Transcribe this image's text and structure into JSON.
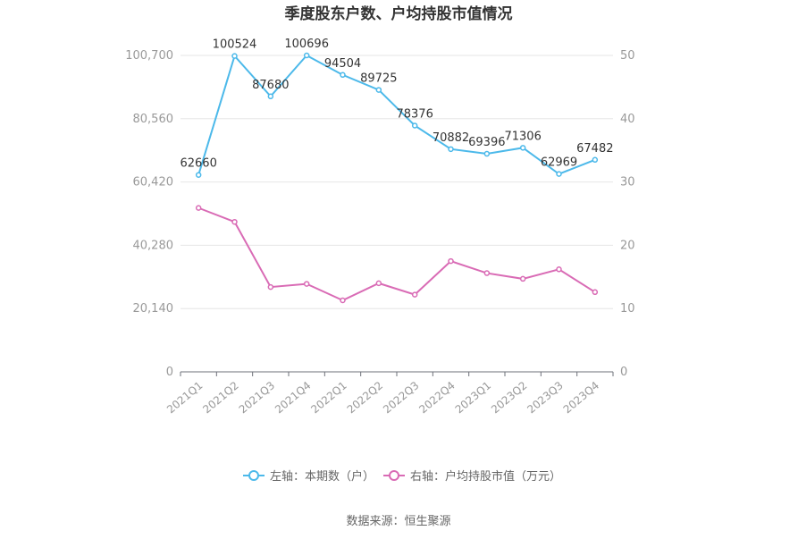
{
  "chart_data": {
    "type": "line",
    "title": "季度股东户数、户均持股市值情况",
    "categories": [
      "2021Q1",
      "2021Q2",
      "2021Q3",
      "2021Q4",
      "2022Q1",
      "2022Q2",
      "2022Q3",
      "2022Q4",
      "2023Q1",
      "2023Q2",
      "2023Q3",
      "2023Q4"
    ],
    "left_axis": {
      "ticks": [
        "0",
        "20,140",
        "40,280",
        "60,420",
        "80,560",
        "100,700"
      ],
      "ylim": [
        0,
        100700
      ]
    },
    "right_axis": {
      "ticks": [
        "0",
        "10",
        "20",
        "30",
        "40",
        "50"
      ],
      "ylim": [
        0,
        50
      ]
    },
    "series": [
      {
        "name": "左轴：本期数（户）",
        "axis": "left",
        "color": "#4cb9ea",
        "values": [
          62660,
          100524,
          87680,
          100696,
          94504,
          89725,
          78376,
          70882,
          69396,
          71306,
          62969,
          67482
        ],
        "labels": [
          "62660",
          "100524",
          "87680",
          "100696",
          "94504",
          "89725",
          "78376",
          "70882",
          "69396",
          "71306",
          "62969",
          "67482"
        ]
      },
      {
        "name": "右轴：户均持股市值（万元）",
        "axis": "right",
        "color": "#d96bb5",
        "values": [
          25.9,
          23.7,
          13.4,
          13.9,
          11.3,
          14.0,
          12.2,
          17.5,
          15.6,
          14.7,
          16.2,
          12.6
        ]
      }
    ],
    "grid": true,
    "legend_position": "bottom"
  },
  "source": "数据来源：恒生聚源"
}
